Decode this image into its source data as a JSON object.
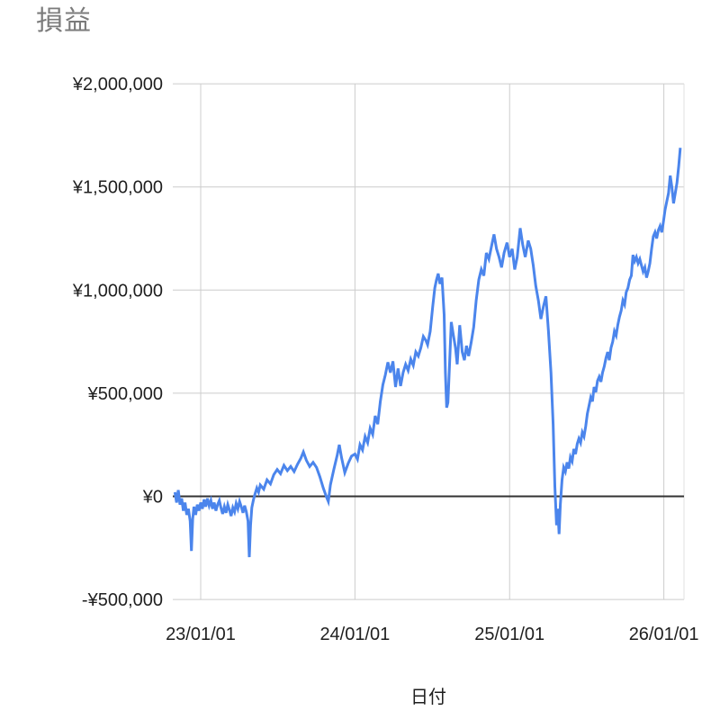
{
  "page": {
    "background": "#ffffff"
  },
  "chart": {
    "title": "損益",
    "title_color": "#7b7b7b",
    "x_axis_title": "日付",
    "line_color": "#4b85ec",
    "gridline_color": "#cccccc",
    "edge_line_color": "#e2e2e2",
    "baseline_color": "#333333",
    "label_color": "#1f1f1f",
    "tick_font_size": 20,
    "axis_title_font_size": 20
  },
  "chart_data": {
    "type": "line",
    "title": "損益",
    "xlabel": "日付",
    "ylabel": "",
    "grid": true,
    "legend": "none",
    "ylim": [
      -500000,
      2000000
    ],
    "xlim": [
      "2022-10-20",
      "2026-02-15"
    ],
    "y_ticks": [
      {
        "label": "¥2,000,000",
        "value": 2000000
      },
      {
        "label": "¥1,500,000",
        "value": 1500000
      },
      {
        "label": "¥1,000,000",
        "value": 1000000
      },
      {
        "label": "¥500,000",
        "value": 500000
      },
      {
        "label": "¥0",
        "value": 0
      },
      {
        "label": "-¥500,000",
        "value": -500000
      }
    ],
    "x_ticks": [
      {
        "label": "23/01/01",
        "date": "2023-01-01"
      },
      {
        "label": "24/01/01",
        "date": "2024-01-01"
      },
      {
        "label": "25/01/01",
        "date": "2025-01-01"
      },
      {
        "label": "26/01/01",
        "date": "2026-01-01"
      }
    ],
    "series": [
      {
        "name": "損益",
        "points": [
          [
            "2022-11-01",
            20000
          ],
          [
            "2022-11-05",
            -30000
          ],
          [
            "2022-11-09",
            30000
          ],
          [
            "2022-11-13",
            -40000
          ],
          [
            "2022-11-17",
            -10000
          ],
          [
            "2022-11-21",
            -70000
          ],
          [
            "2022-11-25",
            -30000
          ],
          [
            "2022-11-29",
            -90000
          ],
          [
            "2022-12-03",
            -60000
          ],
          [
            "2022-12-07",
            -120000
          ],
          [
            "2022-12-10",
            -265000
          ],
          [
            "2022-12-13",
            -110000
          ],
          [
            "2022-12-16",
            -50000
          ],
          [
            "2022-12-20",
            -90000
          ],
          [
            "2022-12-24",
            -40000
          ],
          [
            "2022-12-28",
            -70000
          ],
          [
            "2023-01-01",
            -30000
          ],
          [
            "2023-01-05",
            -60000
          ],
          [
            "2023-01-09",
            -15000
          ],
          [
            "2023-01-13",
            -50000
          ],
          [
            "2023-01-17",
            -10000
          ],
          [
            "2023-01-21",
            -45000
          ],
          [
            "2023-01-25",
            -20000
          ],
          [
            "2023-01-29",
            -60000
          ],
          [
            "2023-02-02",
            -30000
          ],
          [
            "2023-02-06",
            -70000
          ],
          [
            "2023-02-10",
            -40000
          ],
          [
            "2023-02-14",
            -20000
          ],
          [
            "2023-02-18",
            -55000
          ],
          [
            "2023-02-22",
            -85000
          ],
          [
            "2023-02-26",
            -50000
          ],
          [
            "2023-03-02",
            -80000
          ],
          [
            "2023-03-06",
            -40000
          ],
          [
            "2023-03-10",
            -65000
          ],
          [
            "2023-03-14",
            -95000
          ],
          [
            "2023-03-18",
            -55000
          ],
          [
            "2023-03-22",
            -75000
          ],
          [
            "2023-03-26",
            -35000
          ],
          [
            "2023-03-30",
            -60000
          ],
          [
            "2023-04-03",
            -25000
          ],
          [
            "2023-04-07",
            -50000
          ],
          [
            "2023-04-11",
            -80000
          ],
          [
            "2023-04-15",
            -45000
          ],
          [
            "2023-04-19",
            -75000
          ],
          [
            "2023-04-23",
            -120000
          ],
          [
            "2023-04-26",
            -295000
          ],
          [
            "2023-04-29",
            -140000
          ],
          [
            "2023-05-02",
            -55000
          ],
          [
            "2023-05-06",
            -15000
          ],
          [
            "2023-05-10",
            15000
          ],
          [
            "2023-05-14",
            40000
          ],
          [
            "2023-05-18",
            20000
          ],
          [
            "2023-05-22",
            55000
          ],
          [
            "2023-05-30",
            35000
          ],
          [
            "2023-06-07",
            80000
          ],
          [
            "2023-06-15",
            60000
          ],
          [
            "2023-06-23",
            105000
          ],
          [
            "2023-07-01",
            130000
          ],
          [
            "2023-07-09",
            110000
          ],
          [
            "2023-07-17",
            150000
          ],
          [
            "2023-07-25",
            125000
          ],
          [
            "2023-08-02",
            145000
          ],
          [
            "2023-08-10",
            120000
          ],
          [
            "2023-08-18",
            155000
          ],
          [
            "2023-08-26",
            185000
          ],
          [
            "2023-09-01",
            215000
          ],
          [
            "2023-09-08",
            175000
          ],
          [
            "2023-09-16",
            145000
          ],
          [
            "2023-09-24",
            165000
          ],
          [
            "2023-10-02",
            140000
          ],
          [
            "2023-10-10",
            95000
          ],
          [
            "2023-10-18",
            40000
          ],
          [
            "2023-10-26",
            -5000
          ],
          [
            "2023-10-30",
            -25000
          ],
          [
            "2023-11-04",
            55000
          ],
          [
            "2023-11-12",
            130000
          ],
          [
            "2023-11-20",
            200000
          ],
          [
            "2023-11-25",
            250000
          ],
          [
            "2023-11-30",
            190000
          ],
          [
            "2023-12-08",
            115000
          ],
          [
            "2023-12-16",
            160000
          ],
          [
            "2023-12-24",
            195000
          ],
          [
            "2024-01-01",
            205000
          ],
          [
            "2024-01-07",
            180000
          ],
          [
            "2024-01-13",
            250000
          ],
          [
            "2024-01-19",
            225000
          ],
          [
            "2024-01-25",
            290000
          ],
          [
            "2024-01-31",
            260000
          ],
          [
            "2024-02-06",
            330000
          ],
          [
            "2024-02-12",
            300000
          ],
          [
            "2024-02-18",
            390000
          ],
          [
            "2024-02-24",
            350000
          ],
          [
            "2024-03-01",
            460000
          ],
          [
            "2024-03-07",
            540000
          ],
          [
            "2024-03-13",
            590000
          ],
          [
            "2024-03-19",
            650000
          ],
          [
            "2024-03-25",
            600000
          ],
          [
            "2024-03-31",
            655000
          ],
          [
            "2024-04-06",
            530000
          ],
          [
            "2024-04-12",
            620000
          ],
          [
            "2024-04-18",
            535000
          ],
          [
            "2024-04-24",
            600000
          ],
          [
            "2024-04-30",
            640000
          ],
          [
            "2024-05-06",
            610000
          ],
          [
            "2024-05-12",
            665000
          ],
          [
            "2024-05-18",
            635000
          ],
          [
            "2024-05-24",
            700000
          ],
          [
            "2024-05-30",
            680000
          ],
          [
            "2024-06-05",
            720000
          ],
          [
            "2024-06-11",
            775000
          ],
          [
            "2024-06-17",
            755000
          ],
          [
            "2024-06-21",
            735000
          ],
          [
            "2024-06-27",
            800000
          ],
          [
            "2024-07-03",
            920000
          ],
          [
            "2024-07-08",
            1010000
          ],
          [
            "2024-07-12",
            1050000
          ],
          [
            "2024-07-16",
            1080000
          ],
          [
            "2024-07-20",
            1030000
          ],
          [
            "2024-07-25",
            1060000
          ],
          [
            "2024-07-30",
            880000
          ],
          [
            "2024-08-02",
            600000
          ],
          [
            "2024-08-05",
            430000
          ],
          [
            "2024-08-08",
            455000
          ],
          [
            "2024-08-12",
            650000
          ],
          [
            "2024-08-16",
            845000
          ],
          [
            "2024-08-21",
            780000
          ],
          [
            "2024-08-26",
            720000
          ],
          [
            "2024-08-30",
            640000
          ],
          [
            "2024-09-05",
            830000
          ],
          [
            "2024-09-11",
            700000
          ],
          [
            "2024-09-16",
            660000
          ],
          [
            "2024-09-21",
            730000
          ],
          [
            "2024-09-26",
            680000
          ],
          [
            "2024-10-02",
            745000
          ],
          [
            "2024-10-08",
            820000
          ],
          [
            "2024-10-14",
            950000
          ],
          [
            "2024-10-20",
            1050000
          ],
          [
            "2024-10-26",
            1100000
          ],
          [
            "2024-11-01",
            1070000
          ],
          [
            "2024-11-07",
            1180000
          ],
          [
            "2024-11-13",
            1150000
          ],
          [
            "2024-11-19",
            1210000
          ],
          [
            "2024-11-25",
            1270000
          ],
          [
            "2024-12-01",
            1200000
          ],
          [
            "2024-12-07",
            1160000
          ],
          [
            "2024-12-13",
            1110000
          ],
          [
            "2024-12-19",
            1180000
          ],
          [
            "2024-12-26",
            1230000
          ],
          [
            "2025-01-01",
            1160000
          ],
          [
            "2025-01-07",
            1200000
          ],
          [
            "2025-01-13",
            1100000
          ],
          [
            "2025-01-19",
            1160000
          ],
          [
            "2025-01-26",
            1300000
          ],
          [
            "2025-02-01",
            1220000
          ],
          [
            "2025-02-07",
            1160000
          ],
          [
            "2025-02-14",
            1240000
          ],
          [
            "2025-02-20",
            1200000
          ],
          [
            "2025-02-26",
            1120000
          ],
          [
            "2025-03-04",
            1020000
          ],
          [
            "2025-03-10",
            950000
          ],
          [
            "2025-03-16",
            860000
          ],
          [
            "2025-03-22",
            920000
          ],
          [
            "2025-03-28",
            970000
          ],
          [
            "2025-04-03",
            800000
          ],
          [
            "2025-04-09",
            600000
          ],
          [
            "2025-04-14",
            350000
          ],
          [
            "2025-04-18",
            50000
          ],
          [
            "2025-04-22",
            -140000
          ],
          [
            "2025-04-25",
            -60000
          ],
          [
            "2025-04-28",
            -183000
          ],
          [
            "2025-05-01",
            -40000
          ],
          [
            "2025-05-05",
            80000
          ],
          [
            "2025-05-09",
            140000
          ],
          [
            "2025-05-13",
            120000
          ],
          [
            "2025-05-17",
            165000
          ],
          [
            "2025-05-21",
            135000
          ],
          [
            "2025-05-25",
            190000
          ],
          [
            "2025-05-29",
            170000
          ],
          [
            "2025-06-02",
            230000
          ],
          [
            "2025-06-06",
            205000
          ],
          [
            "2025-06-10",
            255000
          ],
          [
            "2025-06-14",
            280000
          ],
          [
            "2025-06-18",
            260000
          ],
          [
            "2025-06-22",
            310000
          ],
          [
            "2025-06-26",
            290000
          ],
          [
            "2025-06-30",
            340000
          ],
          [
            "2025-07-04",
            400000
          ],
          [
            "2025-07-08",
            440000
          ],
          [
            "2025-07-12",
            480000
          ],
          [
            "2025-07-16",
            460000
          ],
          [
            "2025-07-20",
            530000
          ],
          [
            "2025-07-24",
            505000
          ],
          [
            "2025-07-28",
            560000
          ],
          [
            "2025-08-01",
            580000
          ],
          [
            "2025-08-05",
            555000
          ],
          [
            "2025-08-09",
            600000
          ],
          [
            "2025-08-13",
            630000
          ],
          [
            "2025-08-17",
            670000
          ],
          [
            "2025-08-21",
            700000
          ],
          [
            "2025-08-25",
            660000
          ],
          [
            "2025-08-29",
            720000
          ],
          [
            "2025-09-02",
            750000
          ],
          [
            "2025-09-06",
            800000
          ],
          [
            "2025-09-10",
            780000
          ],
          [
            "2025-09-14",
            830000
          ],
          [
            "2025-09-18",
            870000
          ],
          [
            "2025-09-22",
            900000
          ],
          [
            "2025-09-26",
            950000
          ],
          [
            "2025-09-30",
            930000
          ],
          [
            "2025-10-04",
            990000
          ],
          [
            "2025-10-08",
            1010000
          ],
          [
            "2025-10-12",
            1050000
          ],
          [
            "2025-10-16",
            1070000
          ],
          [
            "2025-10-20",
            1170000
          ],
          [
            "2025-10-24",
            1140000
          ],
          [
            "2025-10-28",
            1160000
          ],
          [
            "2025-11-01",
            1130000
          ],
          [
            "2025-11-05",
            1150000
          ],
          [
            "2025-11-09",
            1120000
          ],
          [
            "2025-11-13",
            1090000
          ],
          [
            "2025-11-17",
            1110000
          ],
          [
            "2025-11-21",
            1060000
          ],
          [
            "2025-11-25",
            1090000
          ],
          [
            "2025-11-29",
            1130000
          ],
          [
            "2025-12-03",
            1200000
          ],
          [
            "2025-12-07",
            1260000
          ],
          [
            "2025-12-11",
            1280000
          ],
          [
            "2025-12-15",
            1250000
          ],
          [
            "2025-12-19",
            1290000
          ],
          [
            "2025-12-23",
            1310000
          ],
          [
            "2025-12-27",
            1280000
          ],
          [
            "2025-12-31",
            1330000
          ],
          [
            "2026-01-04",
            1390000
          ],
          [
            "2026-01-08",
            1430000
          ],
          [
            "2026-01-12",
            1470000
          ],
          [
            "2026-01-16",
            1555000
          ],
          [
            "2026-01-20",
            1500000
          ],
          [
            "2026-01-24",
            1420000
          ],
          [
            "2026-01-28",
            1470000
          ],
          [
            "2026-02-01",
            1520000
          ],
          [
            "2026-02-05",
            1600000
          ],
          [
            "2026-02-09",
            1690000
          ]
        ]
      }
    ]
  }
}
